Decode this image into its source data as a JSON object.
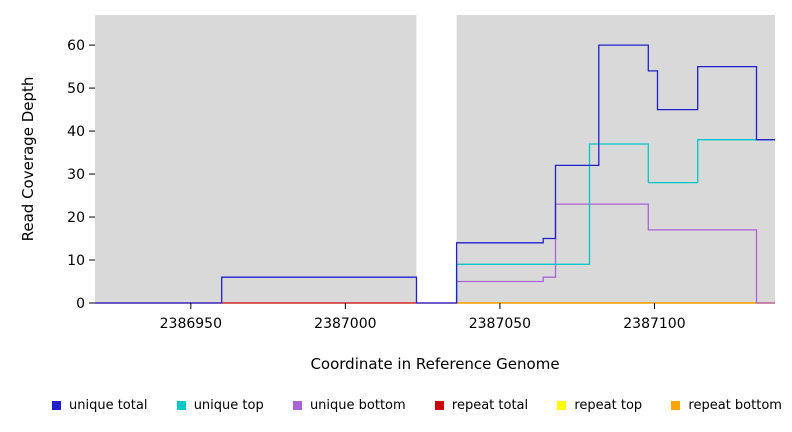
{
  "chart_data": {
    "type": "line",
    "subtype": "step-coverage",
    "title": "",
    "xlabel": "Coordinate in Reference Genome",
    "ylabel": "Read Coverage Depth",
    "xlim": [
      2386919,
      2387139
    ],
    "ylim": [
      0,
      67
    ],
    "x_ticks": [
      2386950,
      2387000,
      2387050,
      2387100
    ],
    "y_ticks": [
      0,
      10,
      20,
      30,
      40,
      50,
      60
    ],
    "grid": false,
    "legend_position": "bottom",
    "panel_bg": "#d9d9d9",
    "gap_region": [
      2387023,
      2387036
    ],
    "series": [
      {
        "name": "repeat total",
        "color": "#cc0000",
        "points": [
          [
            2386919,
            0
          ],
          [
            2387139,
            0
          ]
        ]
      },
      {
        "name": "repeat top",
        "color": "#ffff00",
        "points": [
          [
            2387036,
            0
          ],
          [
            2387139,
            0
          ]
        ]
      },
      {
        "name": "repeat bottom",
        "color": "#ffa500",
        "points": [
          [
            2387036,
            0
          ],
          [
            2387139,
            0
          ]
        ]
      },
      {
        "name": "unique bottom",
        "color": "#ab63d6",
        "points": [
          [
            2387036,
            0
          ],
          [
            2387036,
            5
          ],
          [
            2387064,
            5
          ],
          [
            2387064,
            6
          ],
          [
            2387068,
            6
          ],
          [
            2387068,
            23
          ],
          [
            2387098,
            23
          ],
          [
            2387098,
            17
          ],
          [
            2387133,
            17
          ],
          [
            2387133,
            0
          ],
          [
            2387139,
            0
          ]
        ]
      },
      {
        "name": "unique top",
        "color": "#00c8c8",
        "points": [
          [
            2387036,
            0
          ],
          [
            2387036,
            9
          ],
          [
            2387079,
            9
          ],
          [
            2387079,
            37
          ],
          [
            2387098,
            37
          ],
          [
            2387098,
            28
          ],
          [
            2387114,
            28
          ],
          [
            2387114,
            38
          ],
          [
            2387139,
            38
          ]
        ]
      },
      {
        "name": "unique total",
        "color": "#2121cc",
        "points": [
          [
            2386919,
            0
          ],
          [
            2386960,
            0
          ],
          [
            2386960,
            6
          ],
          [
            2387023,
            6
          ],
          [
            2387023,
            0
          ],
          [
            2387036,
            0
          ],
          [
            2387036,
            14
          ],
          [
            2387064,
            14
          ],
          [
            2387064,
            15
          ],
          [
            2387068,
            15
          ],
          [
            2387068,
            32
          ],
          [
            2387082,
            32
          ],
          [
            2387082,
            60
          ],
          [
            2387098,
            60
          ],
          [
            2387098,
            54
          ],
          [
            2387101,
            54
          ],
          [
            2387101,
            45
          ],
          [
            2387114,
            45
          ],
          [
            2387114,
            55
          ],
          [
            2387133,
            55
          ],
          [
            2387133,
            38
          ],
          [
            2387139,
            38
          ]
        ]
      }
    ]
  },
  "legend": {
    "items": [
      {
        "label": "unique total",
        "color": "#2121cc"
      },
      {
        "label": "unique top",
        "color": "#00c8c8"
      },
      {
        "label": "unique bottom",
        "color": "#ab63d6"
      },
      {
        "label": "repeat total",
        "color": "#cc0000"
      },
      {
        "label": "repeat top",
        "color": "#ffff00"
      },
      {
        "label": "repeat bottom",
        "color": "#ffa500"
      }
    ]
  }
}
